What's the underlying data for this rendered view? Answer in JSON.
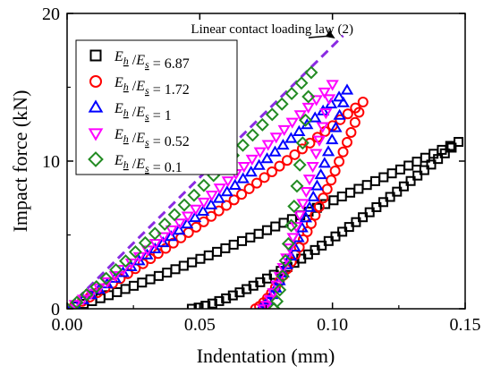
{
  "chart_data": {
    "type": "scatter",
    "xlabel": "Indentation (mm)",
    "ylabel": "Impact force (kN)",
    "xlim": [
      0,
      0.15
    ],
    "ylim": [
      0,
      20
    ],
    "xticks": [
      0,
      0.05,
      0.1,
      0.15
    ],
    "xtick_labels": [
      "0.00",
      "0.05",
      "0.10",
      "0.15"
    ],
    "yticks": [
      0,
      10,
      20
    ],
    "ytick_labels": [
      "0",
      "10",
      "20"
    ],
    "grid": false,
    "legend_position": "top-left",
    "annotation": {
      "text": "Linear contact loading law (2)",
      "arrow_to": [
        0.101,
        18.3
      ]
    },
    "reference_line": {
      "label": "Linear contact loading law (2)",
      "style": "dashed",
      "color": "#8a2be2",
      "points": [
        [
          0,
          0
        ],
        [
          0.104,
          18.5
        ]
      ]
    },
    "series": [
      {
        "name": "Eh/Es = 6.87",
        "legend": {
          "a": "E",
          "a_sub": "h",
          "b": "E",
          "b_sub": "s",
          "value": "6.87"
        },
        "marker": "square",
        "color": "#000000",
        "loading": {
          "x_start": 0.0,
          "y_start": 0.0,
          "x_end": 0.1475,
          "y_end": 11.3,
          "n": 48
        },
        "unloading": {
          "x_start": 0.1475,
          "y_start": 11.3,
          "x_end": 0.047,
          "y_end": 0.0,
          "n": 40
        }
      },
      {
        "name": "Eh/Es = 1.72",
        "legend": {
          "a": "E",
          "a_sub": "h",
          "b": "E",
          "b_sub": "s",
          "value": "1.72"
        },
        "marker": "circle",
        "color": "#ff0000",
        "loading": {
          "x_start": 0.0,
          "y_start": 0.0,
          "x_end": 0.1115,
          "y_end": 14.0,
          "n": 40
        },
        "unloading": {
          "x_start": 0.1115,
          "y_start": 14.0,
          "x_end": 0.071,
          "y_end": 0.0,
          "n": 28
        }
      },
      {
        "name": "Eh/Es = 1",
        "legend": {
          "a": "E",
          "a_sub": "h",
          "b": "E",
          "b_sub": "s",
          "value": "1"
        },
        "marker": "triangle-up",
        "color": "#0000ff",
        "loading": {
          "x_start": 0.0,
          "y_start": 0.0,
          "x_end": 0.1055,
          "y_end": 14.8,
          "n": 36
        },
        "unloading": {
          "x_start": 0.1055,
          "y_start": 14.8,
          "x_end": 0.073,
          "y_end": 0.0,
          "n": 24
        }
      },
      {
        "name": "Eh/Es = 0.52",
        "legend": {
          "a": "E",
          "a_sub": "h",
          "b": "E",
          "b_sub": "s",
          "value": "0.52"
        },
        "marker": "triangle-down",
        "color": "#ff00ff",
        "loading": {
          "x_start": 0.0,
          "y_start": 0.0,
          "x_end": 0.1,
          "y_end": 15.2,
          "n": 34
        },
        "unloading": {
          "x_start": 0.1,
          "y_start": 15.2,
          "x_end": 0.074,
          "y_end": 0.0,
          "n": 22
        }
      },
      {
        "name": "Eh/Es = 0.1",
        "legend": {
          "a": "E",
          "a_sub": "h",
          "b": "E",
          "b_sub": "s",
          "value": "0.1"
        },
        "marker": "diamond",
        "color": "#228b22",
        "loading": {
          "x_start": 0.0,
          "y_start": 0.0,
          "x_end": 0.092,
          "y_end": 16.0,
          "n": 26
        },
        "unloading": {
          "x_start": 0.092,
          "y_start": 16.0,
          "x_end": 0.078,
          "y_end": 0.0,
          "n": 14
        }
      }
    ]
  }
}
